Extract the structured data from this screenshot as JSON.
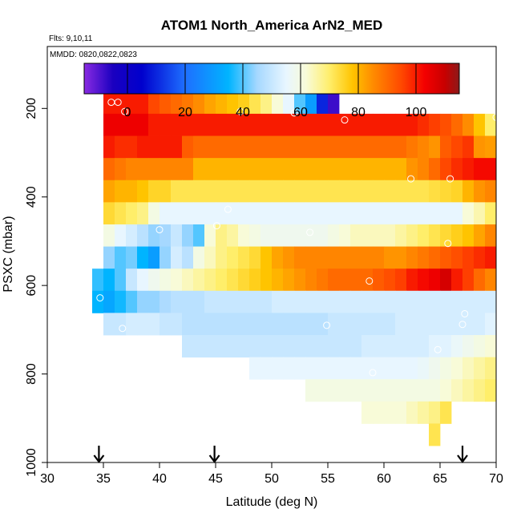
{
  "chart_data": {
    "type": "heatmap",
    "title": "ATOM1 North_America ArN2_MED",
    "flights_label": "Flts: 9,10,11",
    "dates_label": "MMDD: 0820,0822,0823",
    "xlabel": "Latitude (deg N)",
    "ylabel": "PSXC (mbar)",
    "xlim": [
      30,
      70
    ],
    "ylim": [
      1000,
      60
    ],
    "x_ticks": [
      30,
      35,
      40,
      45,
      50,
      55,
      60,
      65,
      70
    ],
    "y_ticks": [
      200,
      400,
      600,
      800,
      1000
    ],
    "colorbar": {
      "range": [
        -15,
        115
      ],
      "ticks": [
        0,
        20,
        40,
        60,
        80,
        100
      ],
      "stops": [
        {
          "v": -15,
          "c": "#8a2be2"
        },
        {
          "v": -5,
          "c": "#1a00c0"
        },
        {
          "v": 5,
          "c": "#0000cd"
        },
        {
          "v": 20,
          "c": "#1e6fff"
        },
        {
          "v": 35,
          "c": "#00b4ff"
        },
        {
          "v": 45,
          "c": "#a6d8ff"
        },
        {
          "v": 55,
          "c": "#e8f6ff"
        },
        {
          "v": 62,
          "c": "#f8fbd8"
        },
        {
          "v": 70,
          "c": "#ffee6a"
        },
        {
          "v": 78,
          "c": "#ffc400"
        },
        {
          "v": 85,
          "c": "#ff8c00"
        },
        {
          "v": 95,
          "c": "#ff4800"
        },
        {
          "v": 103,
          "c": "#f40000"
        },
        {
          "v": 110,
          "c": "#c80000"
        },
        {
          "v": 115,
          "c": "#8c1a1a"
        }
      ]
    },
    "grid": {
      "lat_step": 1,
      "pres_step": 25,
      "rows": [
        {
          "p0": 162,
          "p1": 212,
          "lat0": 35,
          "values": [
            100,
            100,
            100,
            100,
            95,
            92,
            90,
            88,
            85,
            82,
            80,
            78,
            76,
            72,
            68,
            62,
            55,
            40,
            30,
            10,
            -8
          ]
        },
        {
          "p0": 212,
          "p1": 262,
          "lat0": 35,
          "values": [
            104,
            104,
            104,
            104,
            100,
            100,
            100,
            100,
            100,
            100,
            100,
            100,
            100,
            100,
            100,
            100,
            100,
            100,
            100,
            100,
            100,
            100,
            100,
            100,
            100,
            100,
            100,
            100,
            98,
            96,
            94,
            90,
            85,
            78,
            70,
            65
          ]
        },
        {
          "p0": 262,
          "p1": 312,
          "lat0": 35,
          "values": [
            100,
            98,
            98,
            100,
            100,
            100,
            100,
            92,
            90,
            90,
            90,
            90,
            90,
            90,
            90,
            90,
            90,
            90,
            90,
            90,
            90,
            90,
            90,
            90,
            90,
            90,
            90,
            88,
            86,
            84,
            92,
            95,
            97,
            84,
            83,
            82
          ]
        },
        {
          "p0": 312,
          "p1": 362,
          "lat0": 35,
          "values": [
            90,
            88,
            86,
            86,
            86,
            86,
            86,
            86,
            80,
            80,
            80,
            80,
            80,
            80,
            80,
            80,
            80,
            80,
            80,
            80,
            80,
            80,
            80,
            80,
            80,
            80,
            80,
            84,
            86,
            90,
            95,
            98,
            100,
            102,
            102,
            102,
            102,
            104,
            104,
            104
          ]
        },
        {
          "p0": 362,
          "p1": 412,
          "lat0": 35,
          "values": [
            82,
            80,
            80,
            78,
            75,
            75,
            72,
            72,
            72,
            72,
            72,
            72,
            72,
            72,
            72,
            72,
            72,
            72,
            72,
            72,
            72,
            72,
            72,
            72,
            72,
            72,
            72,
            72,
            72,
            73,
            74,
            75,
            80,
            84,
            86,
            90,
            94,
            100,
            100,
            104
          ]
        },
        {
          "p0": 412,
          "p1": 462,
          "lat0": 35,
          "values": [
            74,
            72,
            70,
            68,
            60,
            55,
            55,
            55,
            55,
            55,
            55,
            55,
            55,
            55,
            55,
            55,
            55,
            55,
            55,
            55,
            55,
            55,
            55,
            55,
            55,
            55,
            55,
            55,
            55,
            55,
            55,
            55,
            62,
            65,
            70,
            75,
            82,
            88,
            96,
            104
          ]
        },
        {
          "p0": 462,
          "p1": 512,
          "lat0": 35,
          "values": [
            60,
            55,
            52,
            48,
            44,
            45,
            50,
            44,
            40,
            62,
            68,
            66,
            62,
            60,
            58,
            58,
            58,
            58,
            58,
            58,
            60,
            62,
            64,
            64,
            64,
            64,
            66,
            68,
            70,
            72,
            74,
            76,
            78,
            82,
            86,
            88,
            90,
            96,
            98,
            104
          ]
        },
        {
          "p0": 512,
          "p1": 562,
          "lat0": 35,
          "values": [
            44,
            40,
            42,
            35,
            30,
            44,
            52,
            48,
            60,
            64,
            68,
            70,
            72,
            74,
            78,
            82,
            84,
            86,
            86,
            86,
            86,
            86,
            86,
            86,
            86,
            84,
            84,
            86,
            88,
            90,
            92,
            94,
            96,
            98,
            100,
            100,
            98,
            100,
            102,
            100
          ]
        },
        {
          "p0": 562,
          "p1": 612,
          "lat0": 34,
          "values": [
            38,
            35,
            40,
            50,
            55,
            58,
            60,
            62,
            64,
            66,
            68,
            70,
            72,
            74,
            76,
            78,
            80,
            82,
            84,
            86,
            88,
            90,
            90,
            90,
            90,
            92,
            94,
            96,
            100,
            102,
            104,
            108,
            100,
            96,
            90,
            86,
            80,
            78,
            76,
            74,
            74
          ]
        },
        {
          "p0": 612,
          "p1": 662,
          "lat0": 34,
          "values": [
            35,
            32,
            36,
            40,
            44,
            44,
            46,
            48,
            48,
            48,
            50,
            50,
            50,
            50,
            50,
            50,
            52,
            52,
            52,
            52,
            52,
            52,
            52,
            52,
            52,
            52,
            52,
            52,
            52,
            52,
            52,
            52,
            52,
            52,
            52,
            52,
            52,
            52,
            52,
            52,
            54,
            54,
            56,
            58
          ]
        },
        {
          "p0": 662,
          "p1": 712,
          "lat0": 35,
          "values": [
            50,
            50,
            52,
            52,
            52,
            50,
            50,
            48,
            48,
            48,
            48,
            48,
            48,
            48,
            48,
            48,
            48,
            48,
            48,
            48,
            50,
            50,
            50,
            50,
            50,
            50,
            52,
            52,
            52,
            52,
            52,
            52,
            52,
            52,
            54,
            54,
            56,
            58,
            60,
            62,
            62,
            64
          ]
        },
        {
          "p0": 712,
          "p1": 762,
          "lat0": 42,
          "values": [
            50,
            50,
            50,
            50,
            50,
            50,
            50,
            50,
            50,
            50,
            50,
            50,
            50,
            50,
            50,
            50,
            52,
            52,
            52,
            52,
            52,
            52,
            54,
            54,
            56,
            58,
            60,
            62,
            64,
            66,
            68,
            70,
            72,
            60,
            58
          ]
        },
        {
          "p0": 762,
          "p1": 812,
          "lat0": 48,
          "values": [
            55,
            55,
            55,
            55,
            55,
            55,
            55,
            55,
            55,
            55,
            55,
            55,
            55,
            55,
            55,
            56,
            58,
            60,
            62,
            64,
            66,
            68,
            70,
            72,
            74,
            76,
            70
          ]
        },
        {
          "p0": 812,
          "p1": 862,
          "lat0": 53,
          "values": [
            60,
            60,
            60,
            60,
            60,
            60,
            60,
            60,
            60,
            60,
            60,
            60,
            62,
            64,
            66,
            68,
            70,
            72,
            74,
            76,
            72
          ]
        },
        {
          "p0": 862,
          "p1": 912,
          "lat0": 58,
          "values": [
            62,
            62,
            62,
            62,
            64,
            66,
            68,
            72
          ]
        },
        {
          "p0": 912,
          "p1": 962,
          "lat0": 64,
          "values": [
            72
          ]
        }
      ]
    },
    "markers": [
      {
        "lat": 34.7,
        "p": 628
      },
      {
        "lat": 35.7,
        "p": 186
      },
      {
        "lat": 36.3,
        "p": 186
      },
      {
        "lat": 36.7,
        "p": 697
      },
      {
        "lat": 36.9,
        "p": 207
      },
      {
        "lat": 40.0,
        "p": 474
      },
      {
        "lat": 45.1,
        "p": 465
      },
      {
        "lat": 46.1,
        "p": 428
      },
      {
        "lat": 47.2,
        "p": 207
      },
      {
        "lat": 52.0,
        "p": 210
      },
      {
        "lat": 53.4,
        "p": 480
      },
      {
        "lat": 54.9,
        "p": 690
      },
      {
        "lat": 56.5,
        "p": 226
      },
      {
        "lat": 58.7,
        "p": 590
      },
      {
        "lat": 59.0,
        "p": 797
      },
      {
        "lat": 62.4,
        "p": 359
      },
      {
        "lat": 64.8,
        "p": 745
      },
      {
        "lat": 65.7,
        "p": 505
      },
      {
        "lat": 65.9,
        "p": 359
      },
      {
        "lat": 67.0,
        "p": 688
      },
      {
        "lat": 67.2,
        "p": 664
      },
      {
        "lat": 70.0,
        "p": 220
      }
    ],
    "arrows_lat": [
      34.6,
      44.9,
      67.0
    ]
  }
}
